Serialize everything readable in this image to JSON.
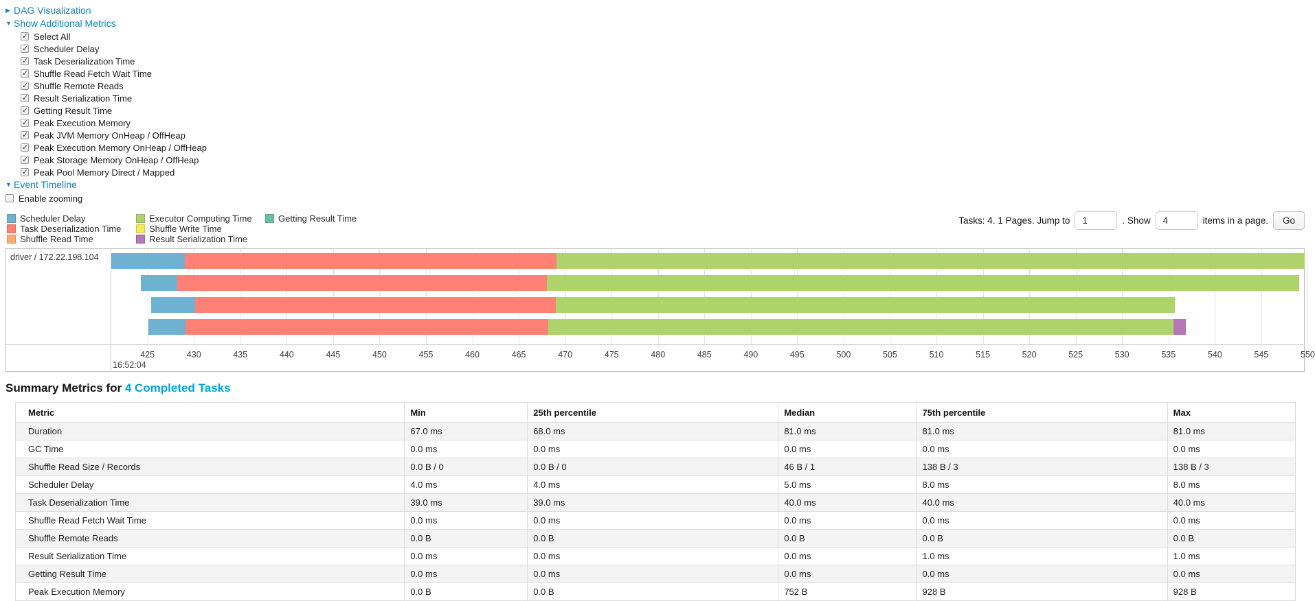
{
  "colors": {
    "link": "#0a85c4",
    "heading_link": "#00a3dd",
    "scheduler_delay": "#6eb1d1",
    "task_deserialization": "#ff8175",
    "shuffle_read": "#fcad6d",
    "executor_computing": "#add36a",
    "shuffle_write": "#f5e956",
    "result_serialization": "#b577b5",
    "getting_result": "#67c2a3"
  },
  "icons": {
    "collapsed": "▶",
    "expanded": "▼",
    "check": "✓"
  },
  "sections": {
    "dag": {
      "label": "DAG Visualization"
    },
    "metrics": {
      "label": "Show Additional Metrics",
      "checkboxes": [
        {
          "label": "Select All",
          "checked": true
        },
        {
          "label": "Scheduler Delay",
          "checked": true
        },
        {
          "label": "Task Deserialization Time",
          "checked": true
        },
        {
          "label": "Shuffle Read Fetch Wait Time",
          "checked": true
        },
        {
          "label": "Shuffle Remote Reads",
          "checked": true
        },
        {
          "label": "Result Serialization Time",
          "checked": true
        },
        {
          "label": "Getting Result Time",
          "checked": true
        },
        {
          "label": "Peak Execution Memory",
          "checked": true
        },
        {
          "label": "Peak JVM Memory OnHeap / OffHeap",
          "checked": true
        },
        {
          "label": "Peak Execution Memory OnHeap / OffHeap",
          "checked": true
        },
        {
          "label": "Peak Storage Memory OnHeap / OffHeap",
          "checked": true
        },
        {
          "label": "Peak Pool Memory Direct / Mapped",
          "checked": true
        }
      ]
    },
    "event_timeline": {
      "label": "Event Timeline",
      "enable_zooming": {
        "label": "Enable zooming",
        "checked": false
      }
    }
  },
  "legend": {
    "columns": [
      [
        {
          "key": "scheduler_delay",
          "label": "Scheduler Delay"
        },
        {
          "key": "task_deserialization",
          "label": "Task Deserialization Time"
        },
        {
          "key": "shuffle_read",
          "label": "Shuffle Read Time"
        }
      ],
      [
        {
          "key": "executor_computing",
          "label": "Executor Computing Time"
        },
        {
          "key": "shuffle_write",
          "label": "Shuffle Write Time"
        },
        {
          "key": "result_serialization",
          "label": "Result Serialization Time"
        }
      ],
      [
        {
          "key": "getting_result",
          "label": "Getting Result Time"
        }
      ]
    ]
  },
  "pagination": {
    "tasks_text": "Tasks: 4. 1 Pages. Jump to",
    "jump_value": "1",
    "show_label": ". Show",
    "show_value": "4",
    "items_text": "items in a page.",
    "go_label": "Go"
  },
  "timeline": {
    "row_label": "driver / 172.22.198.104",
    "axis": {
      "min": 421.1,
      "max": 549.6,
      "ticks": [
        425,
        430,
        435,
        440,
        445,
        450,
        455,
        460,
        465,
        470,
        475,
        480,
        485,
        490,
        495,
        500,
        505,
        510,
        515,
        520,
        525,
        530,
        535,
        540,
        545,
        550
      ],
      "timestamp": "16:52:04"
    },
    "tasks": [
      {
        "segments": [
          {
            "color": "scheduler_delay",
            "start": 421.1,
            "end": 429.0
          },
          {
            "color": "task_deserialization",
            "start": 429.0,
            "end": 469.1
          },
          {
            "color": "executor_computing",
            "start": 469.1,
            "end": 549.7
          }
        ]
      },
      {
        "segments": [
          {
            "color": "scheduler_delay",
            "start": 424.3,
            "end": 428.2
          },
          {
            "color": "task_deserialization",
            "start": 428.2,
            "end": 468.0
          },
          {
            "color": "executor_computing",
            "start": 468.0,
            "end": 549.1
          }
        ]
      },
      {
        "segments": [
          {
            "color": "scheduler_delay",
            "start": 425.4,
            "end": 430.1
          },
          {
            "color": "task_deserialization",
            "start": 430.1,
            "end": 469.0
          },
          {
            "color": "executor_computing",
            "start": 469.0,
            "end": 535.7
          }
        ]
      },
      {
        "segments": [
          {
            "color": "scheduler_delay",
            "start": 425.1,
            "end": 429.1
          },
          {
            "color": "task_deserialization",
            "start": 429.1,
            "end": 468.2
          },
          {
            "color": "executor_computing",
            "start": 468.2,
            "end": 535.5
          },
          {
            "color": "result_serialization",
            "start": 535.5,
            "end": 536.9
          }
        ]
      }
    ]
  },
  "summary": {
    "title_prefix": "Summary Metrics for ",
    "title_link": "4 Completed Tasks",
    "table": {
      "headers": [
        "Metric",
        "Min",
        "25th percentile",
        "Median",
        "75th percentile",
        "Max"
      ],
      "rows": [
        {
          "metric": "Duration",
          "values": [
            "67.0 ms",
            "68.0 ms",
            "81.0 ms",
            "81.0 ms",
            "81.0 ms"
          ]
        },
        {
          "metric": "GC Time",
          "values": [
            "0.0 ms",
            "0.0 ms",
            "0.0 ms",
            "0.0 ms",
            "0.0 ms"
          ]
        },
        {
          "metric": "Shuffle Read Size / Records",
          "values": [
            "0.0 B / 0",
            "0.0 B / 0",
            "46 B / 1",
            "138 B / 3",
            "138 B / 3"
          ]
        },
        {
          "metric": "Scheduler Delay",
          "values": [
            "4.0 ms",
            "4.0 ms",
            "5.0 ms",
            "8.0 ms",
            "8.0 ms"
          ]
        },
        {
          "metric": "Task Deserialization Time",
          "values": [
            "39.0 ms",
            "39.0 ms",
            "40.0 ms",
            "40.0 ms",
            "40.0 ms"
          ]
        },
        {
          "metric": "Shuffle Read Fetch Wait Time",
          "values": [
            "0.0 ms",
            "0.0 ms",
            "0.0 ms",
            "0.0 ms",
            "0.0 ms"
          ]
        },
        {
          "metric": "Shuffle Remote Reads",
          "values": [
            "0.0 B",
            "0.0 B",
            "0.0 B",
            "0.0 B",
            "0.0 B"
          ]
        },
        {
          "metric": "Result Serialization Time",
          "values": [
            "0.0 ms",
            "0.0 ms",
            "0.0 ms",
            "1.0 ms",
            "1.0 ms"
          ]
        },
        {
          "metric": "Getting Result Time",
          "values": [
            "0.0 ms",
            "0.0 ms",
            "0.0 ms",
            "0.0 ms",
            "0.0 ms"
          ]
        },
        {
          "metric": "Peak Execution Memory",
          "values": [
            "0.0 B",
            "0.0 B",
            "752 B",
            "928 B",
            "928 B"
          ]
        }
      ]
    }
  }
}
